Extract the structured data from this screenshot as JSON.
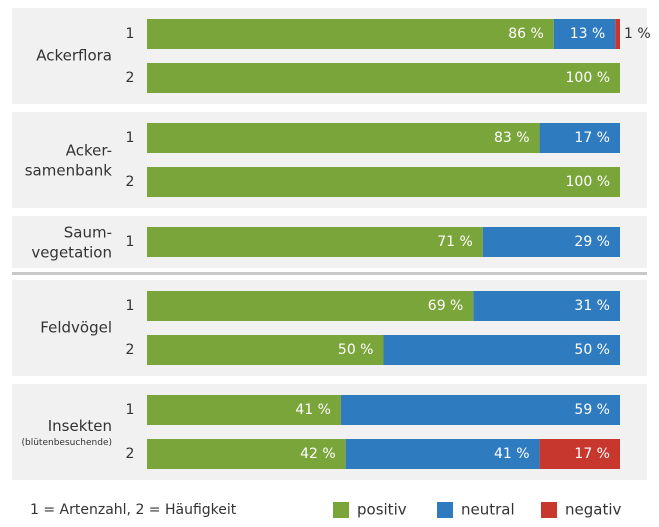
{
  "chart_data": {
    "type": "bar",
    "orientation": "horizontal",
    "stacked": true,
    "groups": [
      {
        "label": [
          "Ackerflora"
        ],
        "categories": [
          "1",
          "2"
        ]
      },
      {
        "label": [
          "Acker-",
          "samenbank"
        ],
        "categories": [
          "1",
          "2"
        ]
      },
      {
        "label": [
          "Saum-",
          "vegetation"
        ],
        "categories": [
          "1"
        ]
      },
      {
        "label": [
          "Feldvögel"
        ],
        "categories": [
          "1",
          "2"
        ]
      },
      {
        "label": [
          "Insekten"
        ],
        "sublabel": "(blütenbesuchende)",
        "categories": [
          "1",
          "2"
        ]
      }
    ],
    "xlim": [
      0,
      100
    ],
    "series": [
      {
        "name": "positiv",
        "color": "#7aa53a",
        "values": [
          86,
          100,
          83,
          100,
          71,
          69,
          50,
          41,
          42
        ],
        "value_labels": [
          "86 %",
          "100 %",
          "83 %",
          "100 %",
          "71 %",
          "69 %",
          "50 %",
          "41 %",
          "42 %"
        ]
      },
      {
        "name": "neutral",
        "color": "#2f7bbf",
        "values": [
          13,
          null,
          17,
          null,
          29,
          31,
          50,
          59,
          41
        ],
        "value_labels": [
          "13 %",
          null,
          "17 %",
          null,
          "29 %",
          "31 %",
          "50 %",
          "59 %",
          "41 %"
        ]
      },
      {
        "name": "negativ",
        "color": "#c8372d",
        "values": [
          1,
          null,
          null,
          null,
          null,
          null,
          null,
          null,
          17
        ],
        "value_labels": [
          "1 %",
          null,
          null,
          null,
          null,
          null,
          null,
          null,
          "17 %"
        ]
      }
    ],
    "note": "1 = Artenzahl, 2 = Häufigkeit"
  }
}
